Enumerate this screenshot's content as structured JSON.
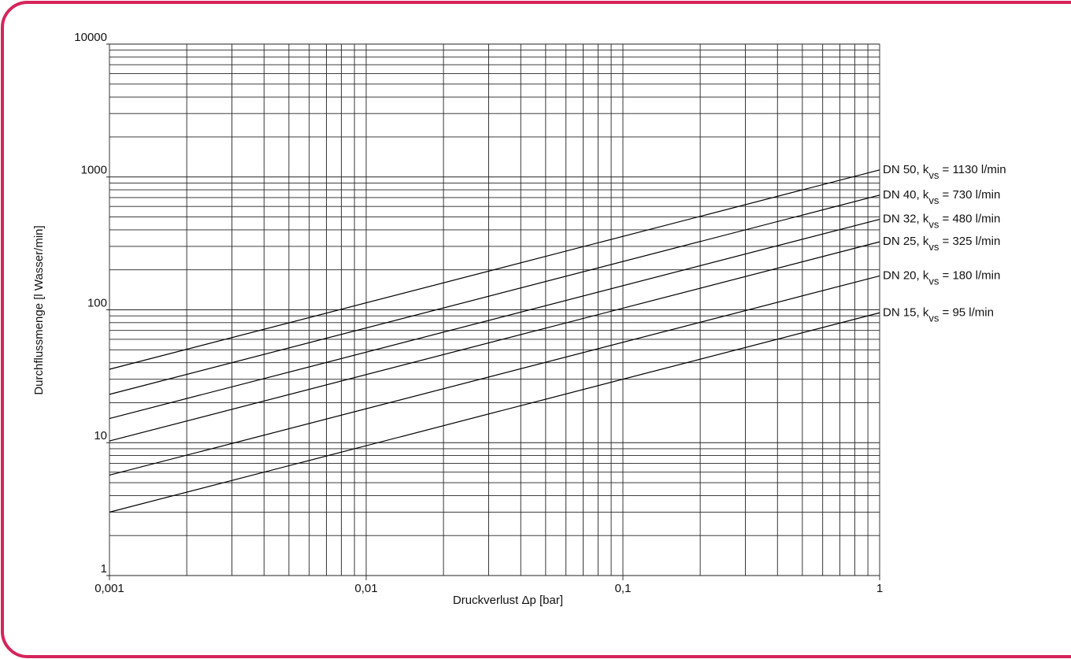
{
  "chart_data": {
    "type": "line",
    "xlabel": "Druckverlust Δp [bar]",
    "ylabel": "Durchflussmenge [l Wasser/min]",
    "log_x": true,
    "log_y": true,
    "grid": true,
    "color": "#000000",
    "xlim": [
      0.001,
      1
    ],
    "ylim": [
      1,
      10000
    ],
    "xticks": [
      {
        "value": 0.001,
        "label": "0,001"
      },
      {
        "value": 0.01,
        "label": "0,01"
      },
      {
        "value": 0.1,
        "label": "0,1"
      },
      1
    ],
    "yticks": [
      1,
      10,
      100,
      1000,
      10000
    ],
    "xminor": [
      0.002,
      0.003,
      0.004,
      0.005,
      0.006,
      0.007,
      0.008,
      0.009,
      0.02,
      0.03,
      0.04,
      0.05,
      0.06,
      0.07,
      0.08,
      0.09,
      0.2,
      0.3,
      0.4,
      0.5,
      0.6,
      0.7,
      0.8,
      0.9
    ],
    "yminor": [
      2,
      3,
      4,
      5,
      6,
      7,
      8,
      9,
      20,
      30,
      40,
      50,
      60,
      70,
      80,
      90,
      200,
      300,
      400,
      500,
      600,
      700,
      800,
      900,
      2000,
      3000,
      4000,
      5000,
      6000,
      7000,
      8000,
      9000
    ],
    "x": [
      0.001,
      1
    ],
    "series": [
      {
        "label": [
          "DN 50, k",
          "vs",
          " = 1130 l/min"
        ],
        "values": [
          35.7,
          1130
        ]
      },
      {
        "label": [
          "DN 40, k",
          "vs",
          " = 730 l/min"
        ],
        "values": [
          23.1,
          730
        ]
      },
      {
        "label": [
          "DN 32, k",
          "vs",
          " = 480 l/min"
        ],
        "values": [
          15.2,
          480
        ]
      },
      {
        "label": [
          "DN 25, k",
          "vs",
          " = 325 l/min"
        ],
        "values": [
          10.3,
          325
        ]
      },
      {
        "label": [
          "DN 20, k",
          "vs",
          " = 180 l/min"
        ],
        "values": [
          5.7,
          180
        ]
      },
      {
        "label": [
          "DN 15, k",
          "vs",
          " = 95 l/min"
        ],
        "values": [
          3.0,
          95
        ]
      }
    ]
  }
}
